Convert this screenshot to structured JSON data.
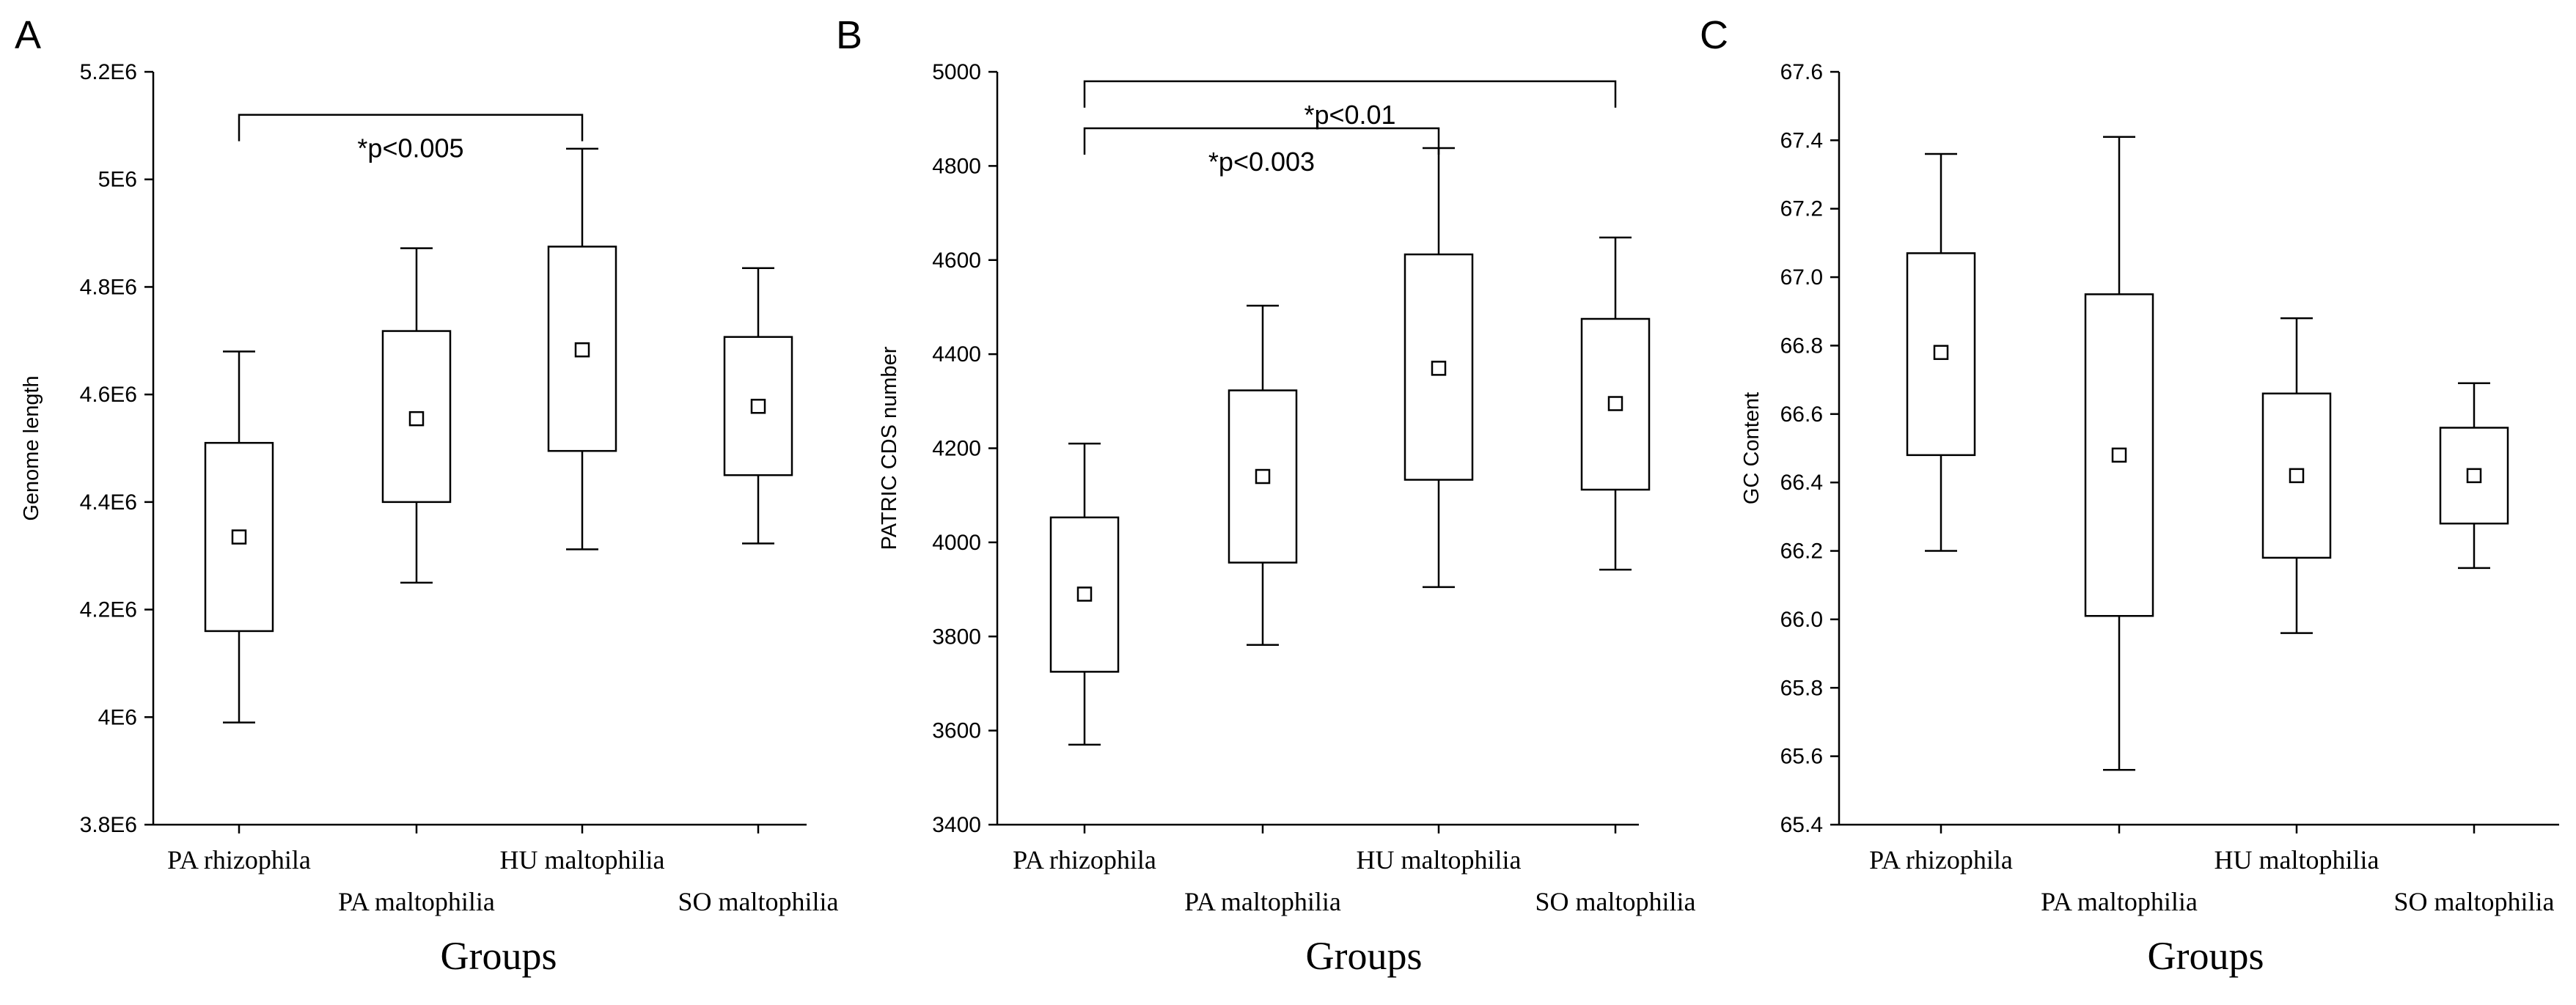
{
  "chart_data": [
    {
      "type": "boxplot",
      "panel_label": "A",
      "ylabel": "Genome length",
      "xlabel": "Groups",
      "ylim": [
        3800000,
        5200000
      ],
      "yticks": [
        3800000,
        4000000,
        4200000,
        4400000,
        4600000,
        4800000,
        5000000,
        5200000
      ],
      "ytick_labels": [
        "3.8E6",
        "4E6",
        "4.2E6",
        "4.4E6",
        "4.6E6",
        "4.8E6",
        "5E6",
        "5.2E6"
      ],
      "categories": [
        "PA rhizophila",
        "PA maltophilia",
        "HU maltophilia",
        "SO maltophilia"
      ],
      "series": [
        {
          "name": "PA rhizophila",
          "whisker_low": 3990000,
          "q1": 4160000,
          "mean": 4335000,
          "q3": 4510000,
          "whisker_high": 4680000
        },
        {
          "name": "PA maltophilia",
          "whisker_low": 4250000,
          "q1": 4400000,
          "mean": 4555000,
          "q3": 4718000,
          "whisker_high": 4872000
        },
        {
          "name": "HU maltophilia",
          "whisker_low": 4312000,
          "q1": 4495000,
          "mean": 4683000,
          "q3": 4875000,
          "whisker_high": 5057000
        },
        {
          "name": "SO maltophilia",
          "whisker_low": 4323000,
          "q1": 4450000,
          "mean": 4578000,
          "q3": 4707000,
          "whisker_high": 4835000
        }
      ],
      "annotations": [
        {
          "text": "*p<0.005",
          "from": 0,
          "to": 2,
          "y": 5120000,
          "label_below": true
        }
      ]
    },
    {
      "type": "boxplot",
      "panel_label": "B",
      "ylabel": "PATRIC CDS number",
      "xlabel": "Groups",
      "ylim": [
        3400,
        5000
      ],
      "yticks": [
        3400,
        3600,
        3800,
        4000,
        4200,
        4400,
        4600,
        4800,
        5000
      ],
      "ytick_labels": [
        "3400",
        "3600",
        "3800",
        "4000",
        "4200",
        "4400",
        "4600",
        "4800",
        "5000"
      ],
      "categories": [
        "PA rhizophila",
        "PA maltophilia",
        "HU maltophilia",
        "SO maltophilia"
      ],
      "series": [
        {
          "name": "PA rhizophila",
          "whisker_low": 3570,
          "q1": 3725,
          "mean": 3890,
          "q3": 4053,
          "whisker_high": 4210
        },
        {
          "name": "PA maltophilia",
          "whisker_low": 3782,
          "q1": 3957,
          "mean": 4140,
          "q3": 4323,
          "whisker_high": 4503
        },
        {
          "name": "HU maltophilia",
          "whisker_low": 3905,
          "q1": 4133,
          "mean": 4370,
          "q3": 4612,
          "whisker_high": 4838
        },
        {
          "name": "SO maltophilia",
          "whisker_low": 3942,
          "q1": 4112,
          "mean": 4295,
          "q3": 4475,
          "whisker_high": 4648
        }
      ],
      "annotations": [
        {
          "text": "*p<0.01",
          "from": 0,
          "to": 3,
          "y": 4980,
          "label_below": true
        },
        {
          "text": "*p<0.003",
          "from": 0,
          "to": 2,
          "y": 4880,
          "label_below": true
        }
      ]
    },
    {
      "type": "boxplot",
      "panel_label": "C",
      "ylabel": "GC Content",
      "xlabel": "Groups",
      "ylim": [
        65.4,
        67.6
      ],
      "yticks": [
        65.4,
        65.6,
        65.8,
        66.0,
        66.2,
        66.4,
        66.6,
        66.8,
        67.0,
        67.2,
        67.4,
        67.6
      ],
      "ytick_labels": [
        "65.4",
        "65.6",
        "65.8",
        "66.0",
        "66.2",
        "66.4",
        "66.6",
        "66.8",
        "67.0",
        "67.2",
        "67.4",
        "67.6"
      ],
      "categories": [
        "PA rhizophila",
        "PA maltophilia",
        "HU maltophilia",
        "SO maltophilia"
      ],
      "series": [
        {
          "name": "PA rhizophila",
          "whisker_low": 66.2,
          "q1": 66.48,
          "mean": 66.78,
          "q3": 67.07,
          "whisker_high": 67.36
        },
        {
          "name": "PA maltophilia",
          "whisker_low": 65.56,
          "q1": 66.01,
          "mean": 66.48,
          "q3": 66.95,
          "whisker_high": 67.41
        },
        {
          "name": "HU maltophilia",
          "whisker_low": 65.96,
          "q1": 66.18,
          "mean": 66.42,
          "q3": 66.66,
          "whisker_high": 66.88
        },
        {
          "name": "SO maltophilia",
          "whisker_low": 66.15,
          "q1": 66.28,
          "mean": 66.42,
          "q3": 66.56,
          "whisker_high": 66.69
        }
      ],
      "annotations": []
    }
  ]
}
